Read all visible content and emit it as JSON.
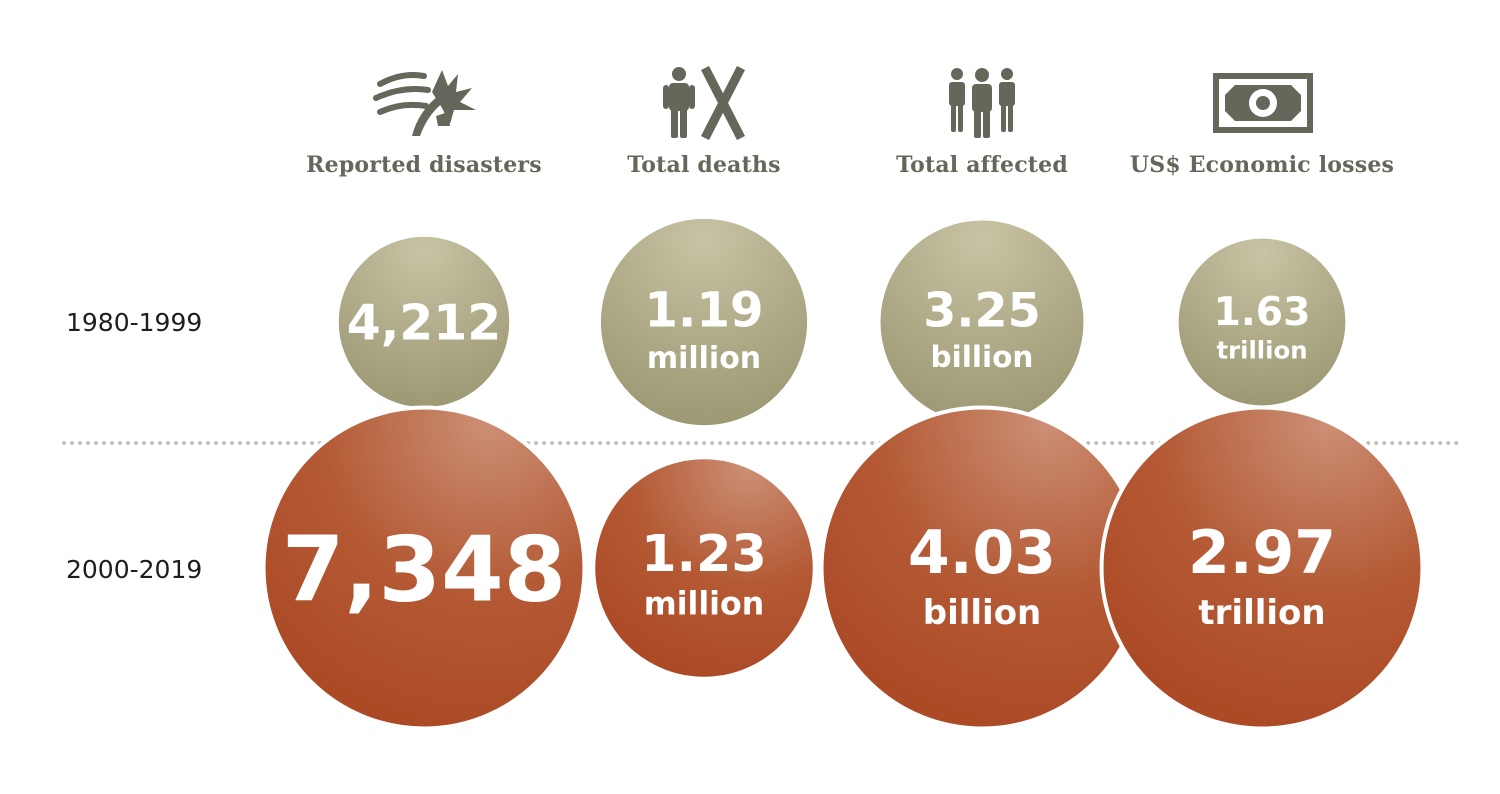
{
  "columns": [
    {
      "label": "Reported disasters",
      "icon": "storm-wind-icon"
    },
    {
      "label": "Total deaths",
      "icon": "person-cross-icon"
    },
    {
      "label": "Total affected",
      "icon": "people-group-icon"
    },
    {
      "label": "US$ Economic losses",
      "icon": "banknote-icon"
    }
  ],
  "rows": [
    "1980-1999",
    "2000-2019"
  ],
  "colors": {
    "period_1980_1999": "#a6a27d",
    "period_2000_2019": "#b04f2c",
    "label_text": "#66675a",
    "icon": "#66675a",
    "divider": "#c2c2b8"
  },
  "chart_data": {
    "type": "bubble",
    "categories": [
      "Reported disasters",
      "Total deaths",
      "Total affected",
      "US$ Economic losses"
    ],
    "series": [
      {
        "name": "1980-1999",
        "values": [
          4212,
          1.19,
          3.25,
          1.63
        ],
        "value_labels": [
          "4,212",
          "1.19",
          "3.25",
          "1.63"
        ],
        "unit_labels": [
          "",
          "million",
          "billion",
          "trillion"
        ]
      },
      {
        "name": "2000-2019",
        "values": [
          7348,
          1.23,
          4.03,
          2.97
        ],
        "value_labels": [
          "7,348",
          "1.23",
          "4.03",
          "2.97"
        ],
        "unit_labels": [
          "",
          "million",
          "billion",
          "trillion"
        ]
      }
    ]
  }
}
